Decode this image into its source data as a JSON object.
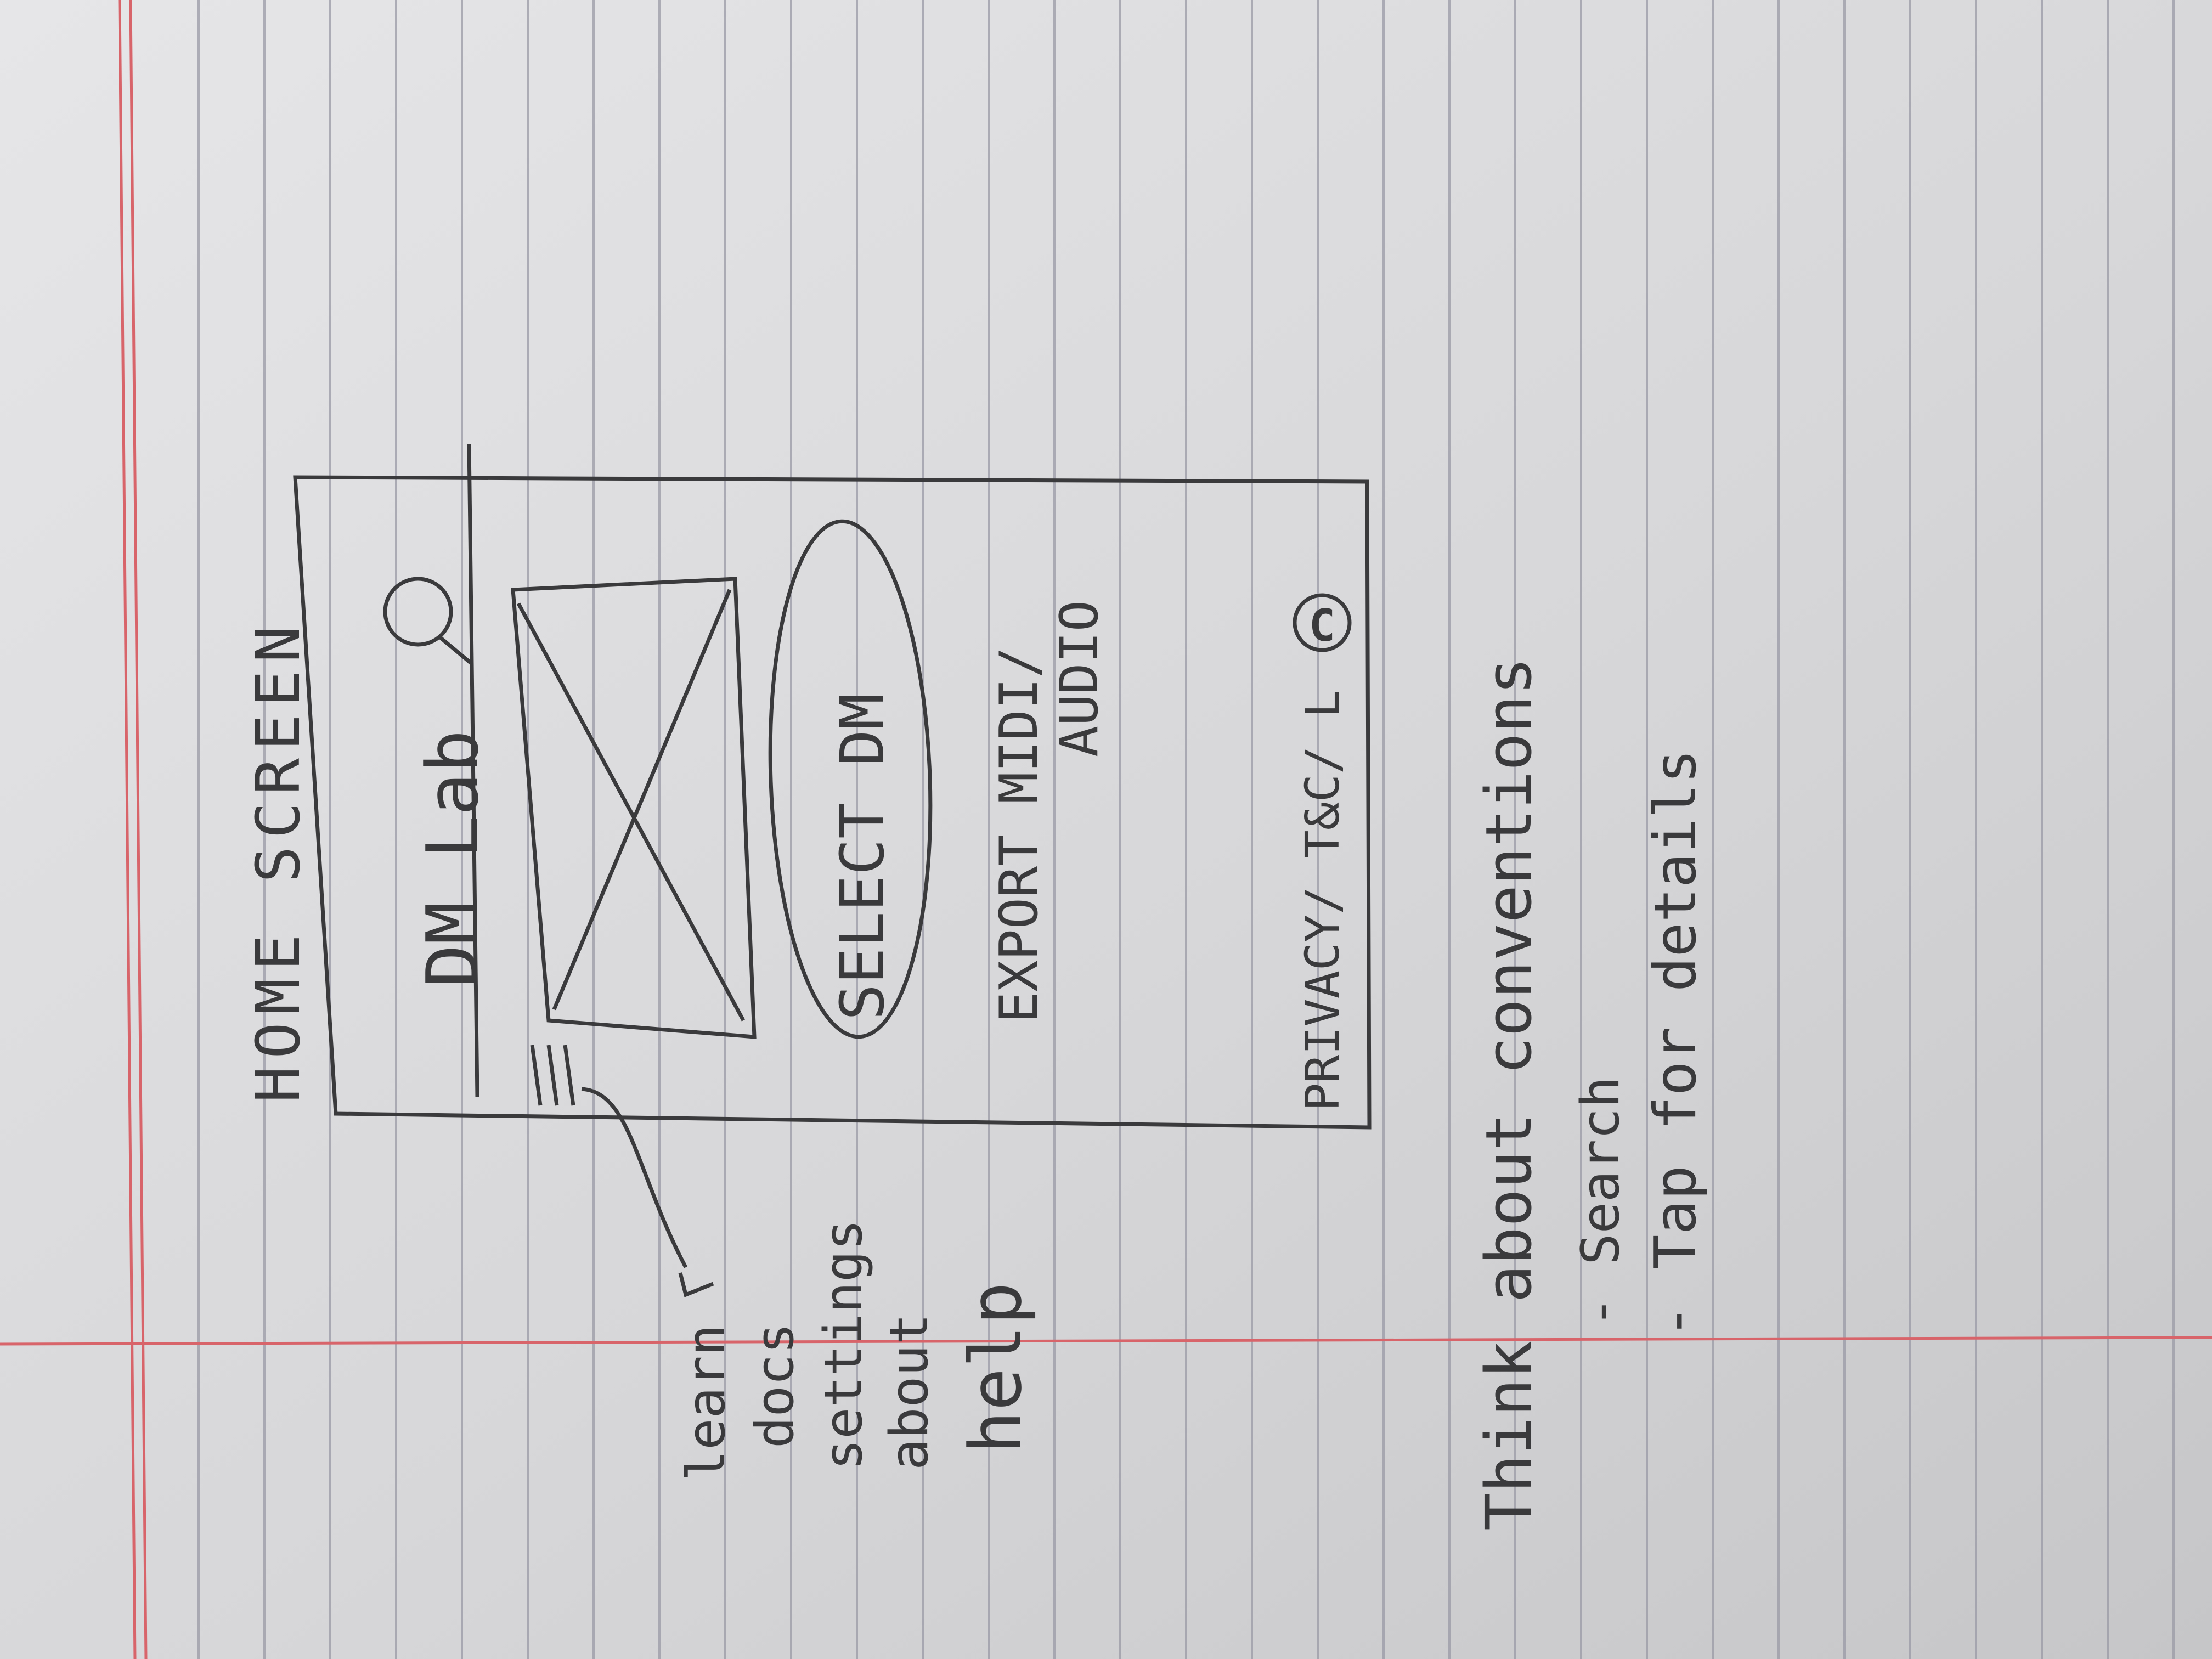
{
  "page_title": "HOME SCREEN",
  "wireframe": {
    "app_title": "DM Lab",
    "select_button": "SELECT DM",
    "export_line1": "EXPORT MIDI/",
    "export_line2": "AUDIO",
    "footer": "PRIVACY/ T&C/ L",
    "footer_c": "C"
  },
  "menu_notes": [
    "learn",
    "docs",
    "settings",
    "about",
    "help"
  ],
  "notes": {
    "title": "Think about conventions",
    "bullets": [
      "- Search",
      "- Tap for details"
    ]
  },
  "colors": {
    "paper": "#d9d9da",
    "ink": "#3a3a3c",
    "rule_line": "#9a9aa6",
    "margin_line": "#d8646a"
  }
}
